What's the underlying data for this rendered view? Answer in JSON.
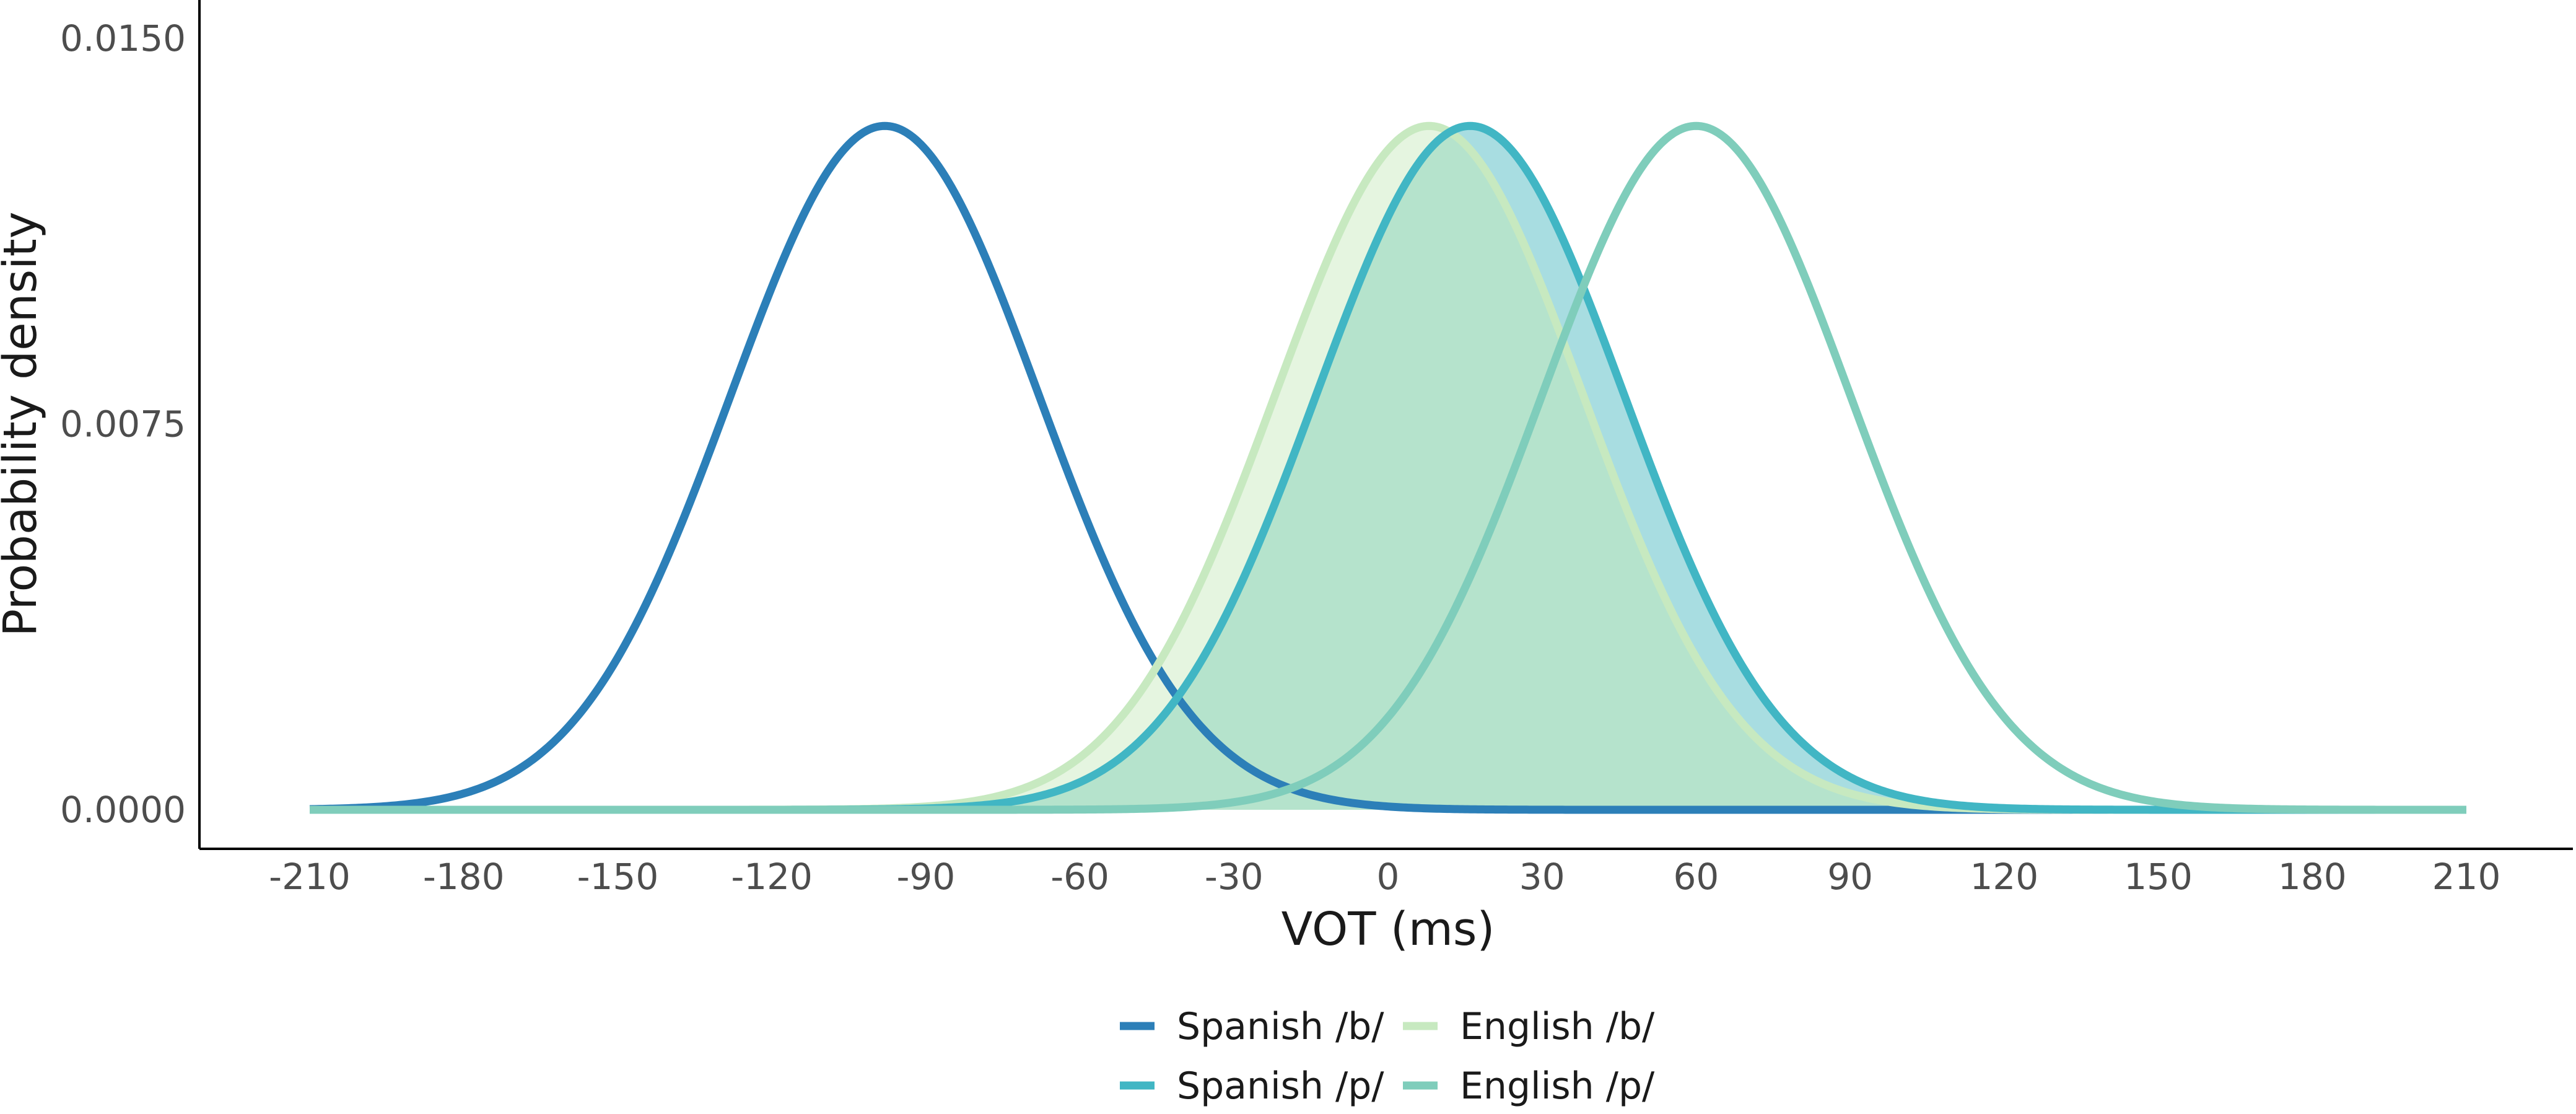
{
  "chart_data": {
    "type": "line",
    "title": "",
    "xlabel": "VOT (ms)",
    "ylabel": "Probability density",
    "xlim": [
      -210,
      210
    ],
    "ylim": [
      0,
      0.015
    ],
    "x_ticks": [
      -210,
      -180,
      -150,
      -120,
      -90,
      -60,
      -30,
      0,
      30,
      60,
      90,
      120,
      150,
      180,
      210
    ],
    "x_tick_labels": [
      "-210",
      "-180",
      "-150",
      "-120",
      "-90",
      "-60",
      "-30",
      "0",
      "30",
      "60",
      "90",
      "120",
      "150",
      "180",
      "210"
    ],
    "y_ticks": [
      0,
      0.0075,
      0.015
    ],
    "y_tick_labels": [
      "0.0000",
      "0.0075",
      "0.0150"
    ],
    "grid": false,
    "legend_position": "bottom",
    "series": [
      {
        "name": "Spanish /b/",
        "distribution": "normal",
        "mean": -98,
        "sd": 30,
        "color": "#2c7fb8",
        "filled": false
      },
      {
        "name": "English /b/",
        "distribution": "normal",
        "mean": 8,
        "sd": 30,
        "color": "#c7e9c0",
        "filled": true,
        "fill_color": "#e5f5e0"
      },
      {
        "name": "Spanish /p/",
        "distribution": "normal",
        "mean": 16,
        "sd": 30,
        "color": "#41b6c4",
        "filled": true,
        "fill_color": "#a8dde1"
      },
      {
        "name": "English /p/",
        "distribution": "normal",
        "mean": 60,
        "sd": 30,
        "color": "#7fcdbb",
        "filled": false
      }
    ],
    "overlap_fill_color": "#b5e3cc",
    "legend_order": [
      "Spanish /b/",
      "English /b/",
      "Spanish /p/",
      "English /p/"
    ]
  }
}
